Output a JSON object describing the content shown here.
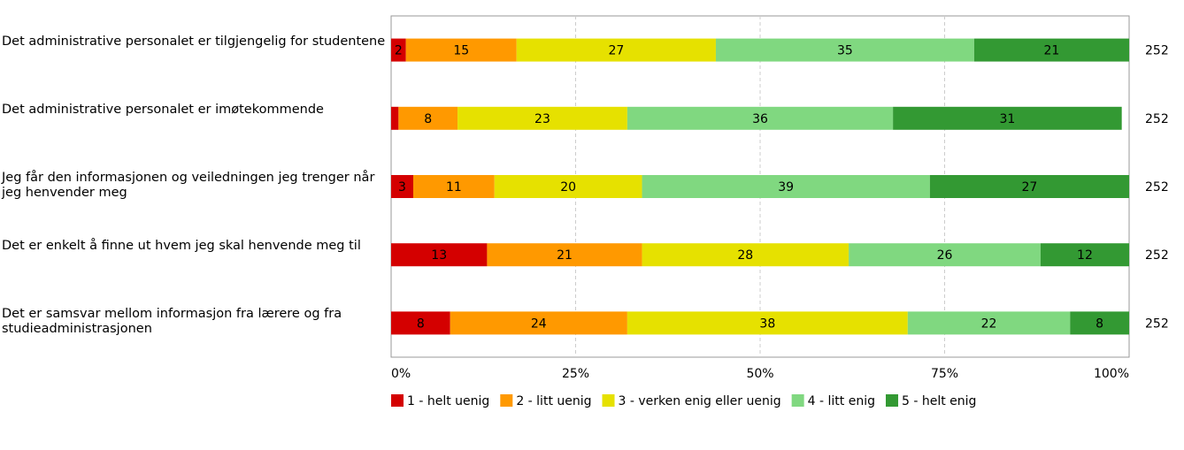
{
  "chart_data": {
    "type": "stacked-barh",
    "categories": [
      "Det administrative personalet er tilgjengelig for studentene",
      "Det administrative personalet er imøtekommende",
      "Jeg får den informasjonen og veiledningen jeg trenger når jeg henvender meg",
      "Det er enkelt å finne ut hvem jeg skal henvende meg til",
      "Det er samsvar mellom informasjon fra lærere og fra studieadministrasjonen"
    ],
    "n": [
      252,
      252,
      252,
      252,
      252
    ],
    "series": [
      {
        "name": "1 - helt uenig",
        "color": "#d40000",
        "values": [
          2,
          1,
          3,
          13,
          8
        ]
      },
      {
        "name": "2 - litt uenig",
        "color": "#ff9900",
        "values": [
          15,
          8,
          11,
          21,
          24
        ]
      },
      {
        "name": "3 - verken enig eller uenig",
        "color": "#e6e100",
        "values": [
          27,
          23,
          20,
          28,
          38
        ]
      },
      {
        "name": "4 - litt enig",
        "color": "#80d880",
        "values": [
          35,
          36,
          39,
          26,
          22
        ]
      },
      {
        "name": "5 - helt enig",
        "color": "#339933",
        "values": [
          21,
          31,
          27,
          12,
          8
        ]
      }
    ],
    "xlim": [
      0,
      100
    ],
    "xticks": [
      {
        "value": 0,
        "label": "0%"
      },
      {
        "value": 25,
        "label": "25%"
      },
      {
        "value": 50,
        "label": "50%"
      },
      {
        "value": 75,
        "label": "75%"
      },
      {
        "value": 100,
        "label": "100%"
      }
    ],
    "grid": true,
    "legend": "bottom"
  }
}
